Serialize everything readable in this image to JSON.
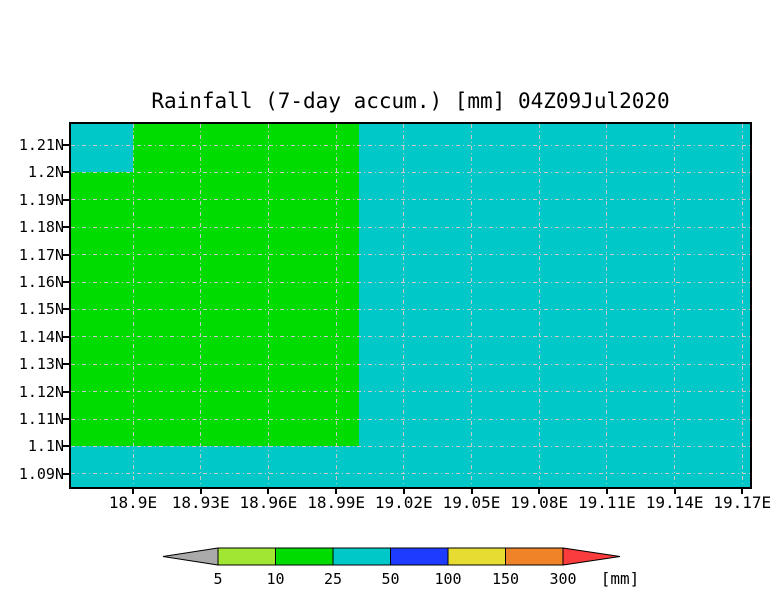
{
  "title": "Rainfall (7-day accum.) [mm] 04Z09Jul2020",
  "axes": {
    "y_tick_labels": [
      "1.21N",
      "1.2N",
      "1.19N",
      "1.18N",
      "1.17N",
      "1.16N",
      "1.15N",
      "1.14N",
      "1.13N",
      "1.12N",
      "1.11N",
      "1.1N",
      "1.09N"
    ],
    "x_tick_labels": [
      "18.9E",
      "18.93E",
      "18.96E",
      "18.99E",
      "19.02E",
      "19.05E",
      "19.08E",
      "19.11E",
      "19.14E",
      "19.17E"
    ]
  },
  "map_colors": {
    "background_cyan": "#00c8c8",
    "green": "#00dc00",
    "gridline": "#c8c8c8",
    "frame": "#000000"
  },
  "colorbar": {
    "tick_labels": [
      "5",
      "10",
      "25",
      "50",
      "100",
      "150",
      "300"
    ],
    "unit_label": "[mm]",
    "segment_colors": [
      "#a0e632",
      "#00dc00",
      "#00c8c8",
      "#1e3cff",
      "#e6dc32",
      "#f08228"
    ],
    "left_arrow_color": "#aaaaaa",
    "right_arrow_color": "#fa3c3c"
  },
  "chart_data": {
    "type": "heatmap",
    "title": "Rainfall (7-day accum.) [mm] 04Z09Jul2020",
    "x_axis": {
      "quantity": "longitude",
      "tick_labels": [
        "18.9E",
        "18.93E",
        "18.96E",
        "18.99E",
        "19.02E",
        "19.05E",
        "19.08E",
        "19.11E",
        "19.14E",
        "19.17E"
      ],
      "tick_step_deg": 0.03,
      "right_edge": "19.17E"
    },
    "y_axis": {
      "quantity": "latitude",
      "tick_labels": [
        "1.21N",
        "1.2N",
        "1.19N",
        "1.18N",
        "1.17N",
        "1.16N",
        "1.15N",
        "1.14N",
        "1.13N",
        "1.12N",
        "1.11N",
        "1.1N",
        "1.09N"
      ],
      "tick_step_deg": 0.01
    },
    "colorbar": {
      "levels_mm": [
        5,
        10,
        25,
        50,
        100,
        150,
        300
      ],
      "unit": "mm",
      "bin_colors": {
        "below_5": "#aaaaaa",
        "5_to_10": "#a0e632",
        "10_to_25": "#00dc00",
        "25_to_50": "#00c8c8",
        "50_to_100": "#1e3cff",
        "100_to_150": "#e6dc32",
        "150_to_300": "#f08228",
        "above_300": "#fa3c3c"
      }
    },
    "regions": [
      {
        "value_bin_mm": "10-25",
        "color": "#00dc00",
        "extent": "west of ~19.0E and north of ~1.1N, excluding the northwest corner cell west of 18.9E / north of 1.2N"
      },
      {
        "value_bin_mm": "25-50",
        "color": "#00c8c8",
        "extent": "rest of domain: east of ~19.0E, the strip south of ~1.1N, and the northwest corner cell (west of 18.9E, north of 1.2N)"
      }
    ],
    "grid": true,
    "grid_style": "gray dash-dot at every tick"
  }
}
